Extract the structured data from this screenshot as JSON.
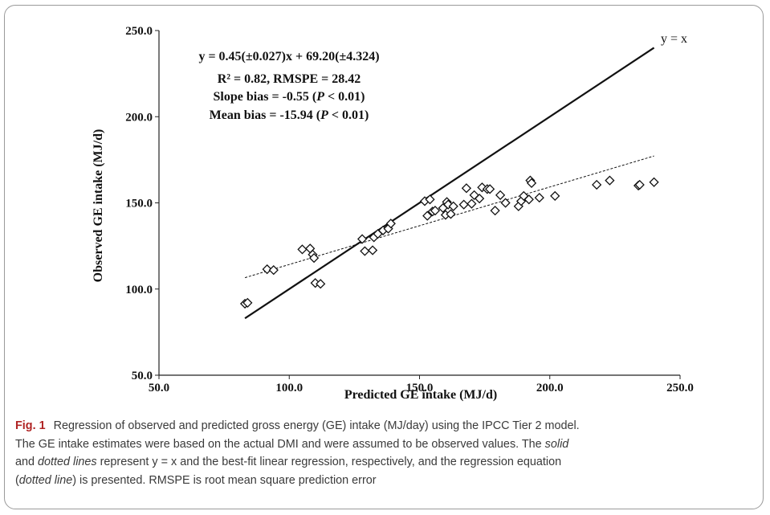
{
  "chart_data": {
    "type": "scatter",
    "xlabel": "Predicted GE intake (MJ/d)",
    "ylabel": "Observed GE intake (MJ/d)",
    "xlim": [
      50,
      250
    ],
    "ylim": [
      50,
      250
    ],
    "x_ticks": [
      "50.0",
      "100.0",
      "150.0",
      "200.0",
      "250.0"
    ],
    "y_ticks": [
      "50.0",
      "100.0",
      "150.0",
      "200.0",
      "250.0"
    ],
    "annotations": [
      "y = 0.45(±0.027)x + 69.20(±4.324)",
      "R² = 0.82, RMSPE = 28.42",
      "Slope bias = -0.55 (P < 0.01)",
      "Mean bias = -15.94 (P < 0.01)"
    ],
    "identity_line_label": "y = x",
    "identity_line": {
      "x": [
        83,
        240
      ],
      "y": [
        83,
        240
      ]
    },
    "regression_line": {
      "x": [
        83,
        240
      ],
      "y": [
        106.6,
        177.2
      ],
      "slope": 0.45,
      "intercept": 69.2
    },
    "points": [
      {
        "x": 83,
        "y": 91.5
      },
      {
        "x": 84,
        "y": 92
      },
      {
        "x": 91.5,
        "y": 111.5
      },
      {
        "x": 94,
        "y": 111
      },
      {
        "x": 105,
        "y": 123
      },
      {
        "x": 108,
        "y": 123.5
      },
      {
        "x": 109,
        "y": 120
      },
      {
        "x": 109.5,
        "y": 118
      },
      {
        "x": 110,
        "y": 103.5
      },
      {
        "x": 112,
        "y": 103
      },
      {
        "x": 128,
        "y": 129
      },
      {
        "x": 129,
        "y": 122
      },
      {
        "x": 132,
        "y": 122.5
      },
      {
        "x": 132.5,
        "y": 130
      },
      {
        "x": 134,
        "y": 132
      },
      {
        "x": 136,
        "y": 134
      },
      {
        "x": 138,
        "y": 135
      },
      {
        "x": 139,
        "y": 138
      },
      {
        "x": 152,
        "y": 151
      },
      {
        "x": 153,
        "y": 142.5
      },
      {
        "x": 154,
        "y": 152
      },
      {
        "x": 155,
        "y": 145
      },
      {
        "x": 156,
        "y": 145.5
      },
      {
        "x": 159,
        "y": 147
      },
      {
        "x": 160,
        "y": 143
      },
      {
        "x": 160.5,
        "y": 150.5
      },
      {
        "x": 161,
        "y": 149
      },
      {
        "x": 162,
        "y": 143.5
      },
      {
        "x": 163,
        "y": 148
      },
      {
        "x": 167,
        "y": 149
      },
      {
        "x": 168,
        "y": 158.5
      },
      {
        "x": 170,
        "y": 149.5
      },
      {
        "x": 171,
        "y": 154.5
      },
      {
        "x": 173,
        "y": 152.5
      },
      {
        "x": 174,
        "y": 159
      },
      {
        "x": 176,
        "y": 158
      },
      {
        "x": 177,
        "y": 158
      },
      {
        "x": 179,
        "y": 145.5
      },
      {
        "x": 181,
        "y": 154.5
      },
      {
        "x": 183,
        "y": 150
      },
      {
        "x": 188,
        "y": 148
      },
      {
        "x": 189,
        "y": 151
      },
      {
        "x": 190,
        "y": 154
      },
      {
        "x": 192,
        "y": 152
      },
      {
        "x": 192.5,
        "y": 163
      },
      {
        "x": 193,
        "y": 161.5
      },
      {
        "x": 196,
        "y": 153
      },
      {
        "x": 202,
        "y": 154
      },
      {
        "x": 218,
        "y": 160.5
      },
      {
        "x": 223,
        "y": 163
      },
      {
        "x": 234,
        "y": 160
      },
      {
        "x": 234.5,
        "y": 160.5
      },
      {
        "x": 240,
        "y": 162
      }
    ]
  },
  "caption": {
    "fig_label": "Fig. 1",
    "line1": "Regression of observed and predicted gross energy (GE) intake (MJ/day) using the IPCC Tier 2 model.",
    "line2": "The GE intake estimates were based on the actual DMI and were assumed to be observed values. The",
    "line2_word": "solid",
    "line3a": "and",
    "line3_word": "dotted lines",
    "line3b": "represent y = x and the best-fit linear regression, respectively, and the regression equation",
    "line4a": "(",
    "line4_word": "dotted line",
    "line4b": ") is presented. RMSPE is root mean square prediction error"
  }
}
